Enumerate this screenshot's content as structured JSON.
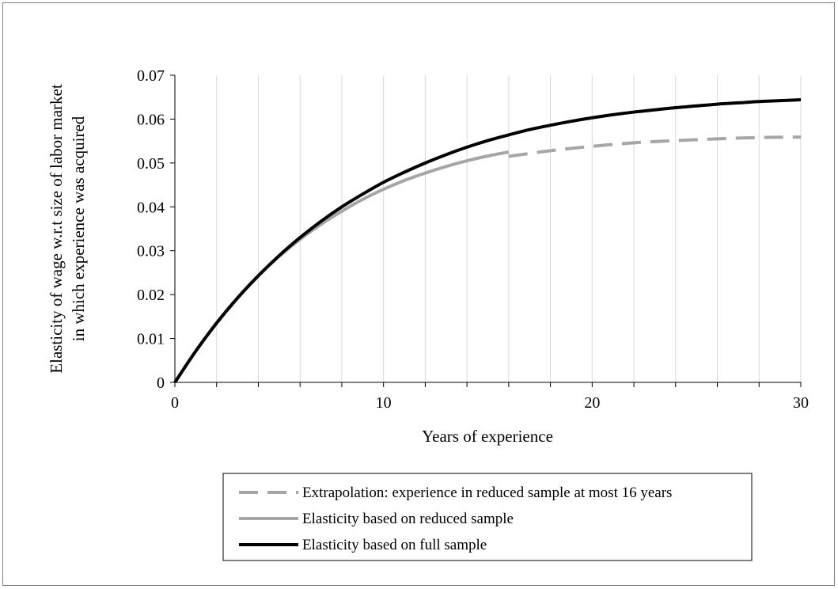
{
  "chart_data": {
    "type": "line",
    "xlabel": "Years of experience",
    "ylabel_lines": [
      "Elasticity of wage w.r.t size of labor market",
      "in which experience was acquired"
    ],
    "xlim": [
      0,
      30
    ],
    "ylim": [
      0,
      0.07
    ],
    "x_ticks": [
      0,
      10,
      20,
      30
    ],
    "x_tick_labels": [
      "0",
      "10",
      "20",
      "30"
    ],
    "y_ticks": [
      0,
      0.01,
      0.02,
      0.03,
      0.04,
      0.05,
      0.06,
      0.07
    ],
    "y_tick_labels": [
      "0",
      "0.01",
      "0.02",
      "0.03",
      "0.04",
      "0.05",
      "0.06",
      "0.07"
    ],
    "grid": "vertical every 2 years",
    "legend_placement": "bottom",
    "series": [
      {
        "name": "Extrapolation: experience in reduced sample at most 16 years",
        "color": "#a6a6a6",
        "style": "dashed",
        "x": [
          16,
          18,
          20,
          22,
          24,
          26,
          28,
          30
        ],
        "y": [
          0.0515,
          0.0528,
          0.0538,
          0.0546,
          0.0551,
          0.0555,
          0.0558,
          0.0559
        ]
      },
      {
        "name": "Elasticity based on reduced sample",
        "color": "#a6a6a6",
        "style": "solid",
        "x": [
          0,
          1,
          2,
          3,
          4,
          5,
          6,
          7,
          8,
          9,
          10,
          11,
          12,
          13,
          14,
          15,
          16
        ],
        "y": [
          0,
          0.0072,
          0.0136,
          0.0193,
          0.0243,
          0.0287,
          0.0326,
          0.036,
          0.039,
          0.0417,
          0.044,
          0.046,
          0.0477,
          0.0492,
          0.0505,
          0.0516,
          0.0525
        ]
      },
      {
        "name": "Elasticity based on full sample",
        "color": "#000000",
        "style": "solid",
        "x": [
          0,
          1,
          2,
          3,
          4,
          5,
          6,
          7,
          8,
          9,
          10,
          11,
          12,
          13,
          14,
          15,
          16,
          17,
          18,
          19,
          20,
          21,
          22,
          23,
          24,
          25,
          26,
          27,
          28,
          29,
          30
        ],
        "y": [
          0,
          0.0071,
          0.0135,
          0.0192,
          0.0243,
          0.0289,
          0.033,
          0.0367,
          0.04,
          0.0429,
          0.0456,
          0.0479,
          0.05,
          0.0519,
          0.0536,
          0.0551,
          0.0564,
          0.0576,
          0.0586,
          0.0595,
          0.0603,
          0.061,
          0.0616,
          0.0621,
          0.0626,
          0.063,
          0.0634,
          0.0637,
          0.064,
          0.0642,
          0.0644
        ]
      }
    ],
    "legend_order": [
      0,
      1,
      2
    ]
  }
}
